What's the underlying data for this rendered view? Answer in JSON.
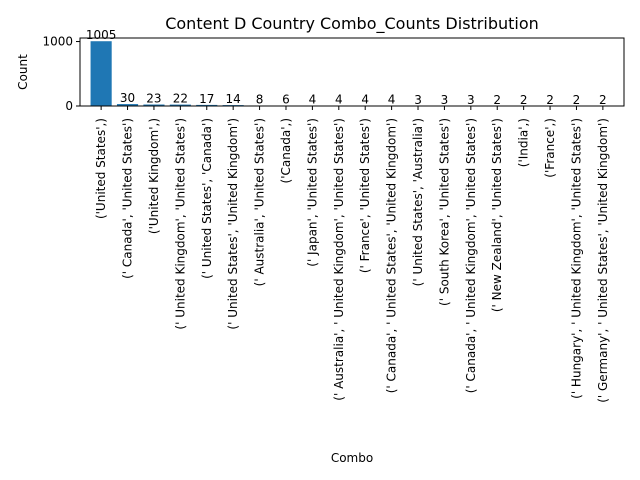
{
  "chart_data": {
    "type": "bar",
    "title": "Content D Country Combo_Counts Distribution",
    "xlabel": "Combo",
    "ylabel": "Count",
    "ylim": [
      0,
      1055
    ],
    "yticks": [
      0,
      1000
    ],
    "bar_color": "#1f77b4",
    "grid": false,
    "categories": [
      "('United States',)",
      "(' Canada', 'United States')",
      "('United Kingdom',)",
      "(' United Kingdom', 'United States')",
      "(' United States', 'Canada')",
      "(' United States', 'United Kingdom')",
      "(' Australia', 'United States')",
      "('Canada',)",
      "(' Japan', 'United States')",
      "(' Australia', ' United Kingdom', 'United States')",
      "(' France', 'United States')",
      "(' Canada', ' United States', 'United Kingdom')",
      "(' United States', 'Australia')",
      "(' South Korea', 'United States')",
      "(' Canada', ' United Kingdom', 'United States')",
      "(' New Zealand', 'United States')",
      "('India',)",
      "('France',)",
      "(' Hungary', ' United Kingdom', 'United States')",
      "(' Germany', ' United States', 'United Kingdom')"
    ],
    "values": [
      1005,
      30,
      23,
      22,
      17,
      14,
      8,
      6,
      4,
      4,
      4,
      4,
      3,
      3,
      3,
      2,
      2,
      2,
      2,
      2
    ]
  }
}
